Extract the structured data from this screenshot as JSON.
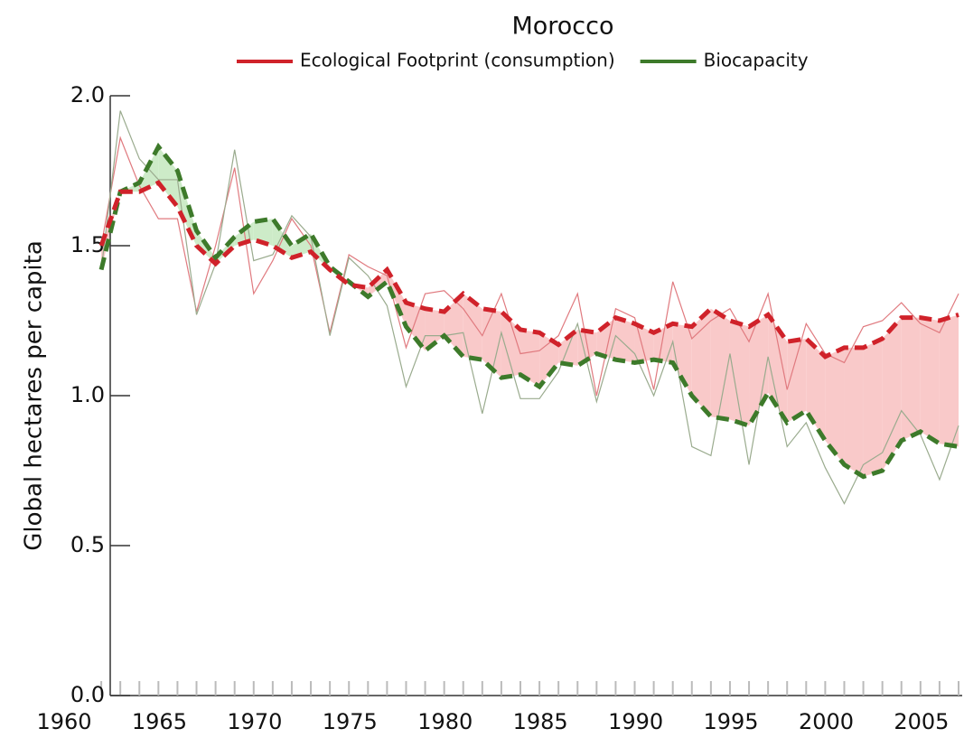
{
  "chart_data": {
    "type": "line",
    "title": "Morocco",
    "ylabel": "Global hectares per capita",
    "x": [
      1961,
      1962,
      1963,
      1964,
      1965,
      1966,
      1967,
      1968,
      1969,
      1970,
      1971,
      1972,
      1973,
      1974,
      1975,
      1976,
      1977,
      1978,
      1979,
      1980,
      1981,
      1982,
      1983,
      1984,
      1985,
      1986,
      1987,
      1988,
      1989,
      1990,
      1991,
      1992,
      1993,
      1994,
      1995,
      1996,
      1997,
      1998,
      1999,
      2000,
      2001,
      2002,
      2003,
      2004,
      2005,
      2006
    ],
    "series": [
      {
        "name": "Ecological Footprint (consumption)",
        "color": "#d0222a",
        "values": [
          1.5,
          1.68,
          1.68,
          1.71,
          1.63,
          1.5,
          1.44,
          1.5,
          1.52,
          1.5,
          1.46,
          1.48,
          1.42,
          1.37,
          1.36,
          1.42,
          1.31,
          1.29,
          1.28,
          1.34,
          1.29,
          1.28,
          1.22,
          1.21,
          1.17,
          1.22,
          1.21,
          1.26,
          1.24,
          1.21,
          1.24,
          1.23,
          1.29,
          1.25,
          1.23,
          1.27,
          1.18,
          1.19,
          1.13,
          1.16,
          1.16,
          1.19,
          1.26,
          1.26,
          1.25,
          1.27
        ]
      },
      {
        "name": "Biocapacity",
        "color": "#3d7a2a",
        "values": [
          1.42,
          1.68,
          1.71,
          1.83,
          1.75,
          1.55,
          1.46,
          1.53,
          1.58,
          1.59,
          1.5,
          1.54,
          1.43,
          1.38,
          1.33,
          1.38,
          1.23,
          1.15,
          1.2,
          1.13,
          1.12,
          1.06,
          1.07,
          1.03,
          1.11,
          1.1,
          1.14,
          1.12,
          1.11,
          1.12,
          1.11,
          1.0,
          0.93,
          0.92,
          0.9,
          1.01,
          0.91,
          0.95,
          0.85,
          0.77,
          0.73,
          0.75,
          0.85,
          0.88,
          0.84,
          0.83
        ]
      },
      {
        "color": "#e07a7f",
        "values": [
          1.5,
          1.86,
          1.7,
          1.59,
          1.59,
          1.28,
          1.5,
          1.76,
          1.34,
          1.45,
          1.59,
          1.5,
          1.21,
          1.47,
          1.43,
          1.4,
          1.16,
          1.34,
          1.35,
          1.29,
          1.2,
          1.34,
          1.14,
          1.15,
          1.2,
          1.34,
          1.0,
          1.29,
          1.26,
          1.02,
          1.38,
          1.19,
          1.25,
          1.29,
          1.18,
          1.34,
          1.02,
          1.24,
          1.14,
          1.11,
          1.23,
          1.25,
          1.31,
          1.24,
          1.21,
          1.34
        ]
      },
      {
        "color": "#9aab8e",
        "values": [
          1.42,
          1.95,
          1.79,
          1.72,
          1.72,
          1.27,
          1.44,
          1.82,
          1.45,
          1.47,
          1.6,
          1.53,
          1.2,
          1.46,
          1.4,
          1.3,
          1.03,
          1.2,
          1.2,
          1.21,
          0.94,
          1.21,
          0.99,
          0.99,
          1.08,
          1.24,
          0.98,
          1.2,
          1.14,
          1.0,
          1.18,
          0.83,
          0.8,
          1.14,
          0.77,
          1.13,
          0.83,
          0.91,
          0.76,
          0.64,
          0.77,
          0.81,
          0.95,
          0.87,
          0.72,
          0.9
        ]
      }
    ],
    "fill_colors": [
      "#f9c9c9",
      "#cdebc8"
    ],
    "xlim": [
      1960,
      2006
    ],
    "xticks": [
      1960,
      1965,
      1970,
      1975,
      1980,
      1985,
      1990,
      1995,
      2000,
      2005
    ],
    "ylim": [
      0,
      2
    ],
    "yticks": [
      {
        "value": 0,
        "label": "0.0"
      },
      {
        "value": 0.5,
        "label": "0.5"
      },
      {
        "value": 1,
        "label": "1.0"
      },
      {
        "value": 1.5,
        "label": "1.5"
      },
      {
        "value": 2,
        "label": "2.0"
      }
    ]
  }
}
